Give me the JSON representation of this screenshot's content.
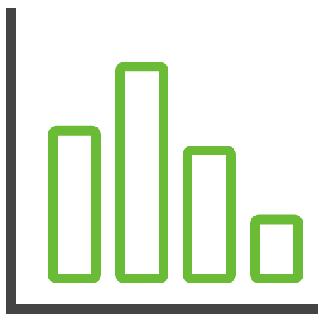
{
  "icon": {
    "name": "bar-chart-icon",
    "axis_color": "#444444",
    "bar_color": "#6abb35",
    "bars": [
      {
        "name": "bar-1",
        "level": 0.6
      },
      {
        "name": "bar-2",
        "level": 0.86
      },
      {
        "name": "bar-3",
        "level": 0.52
      },
      {
        "name": "bar-4",
        "level": 0.24
      }
    ]
  }
}
